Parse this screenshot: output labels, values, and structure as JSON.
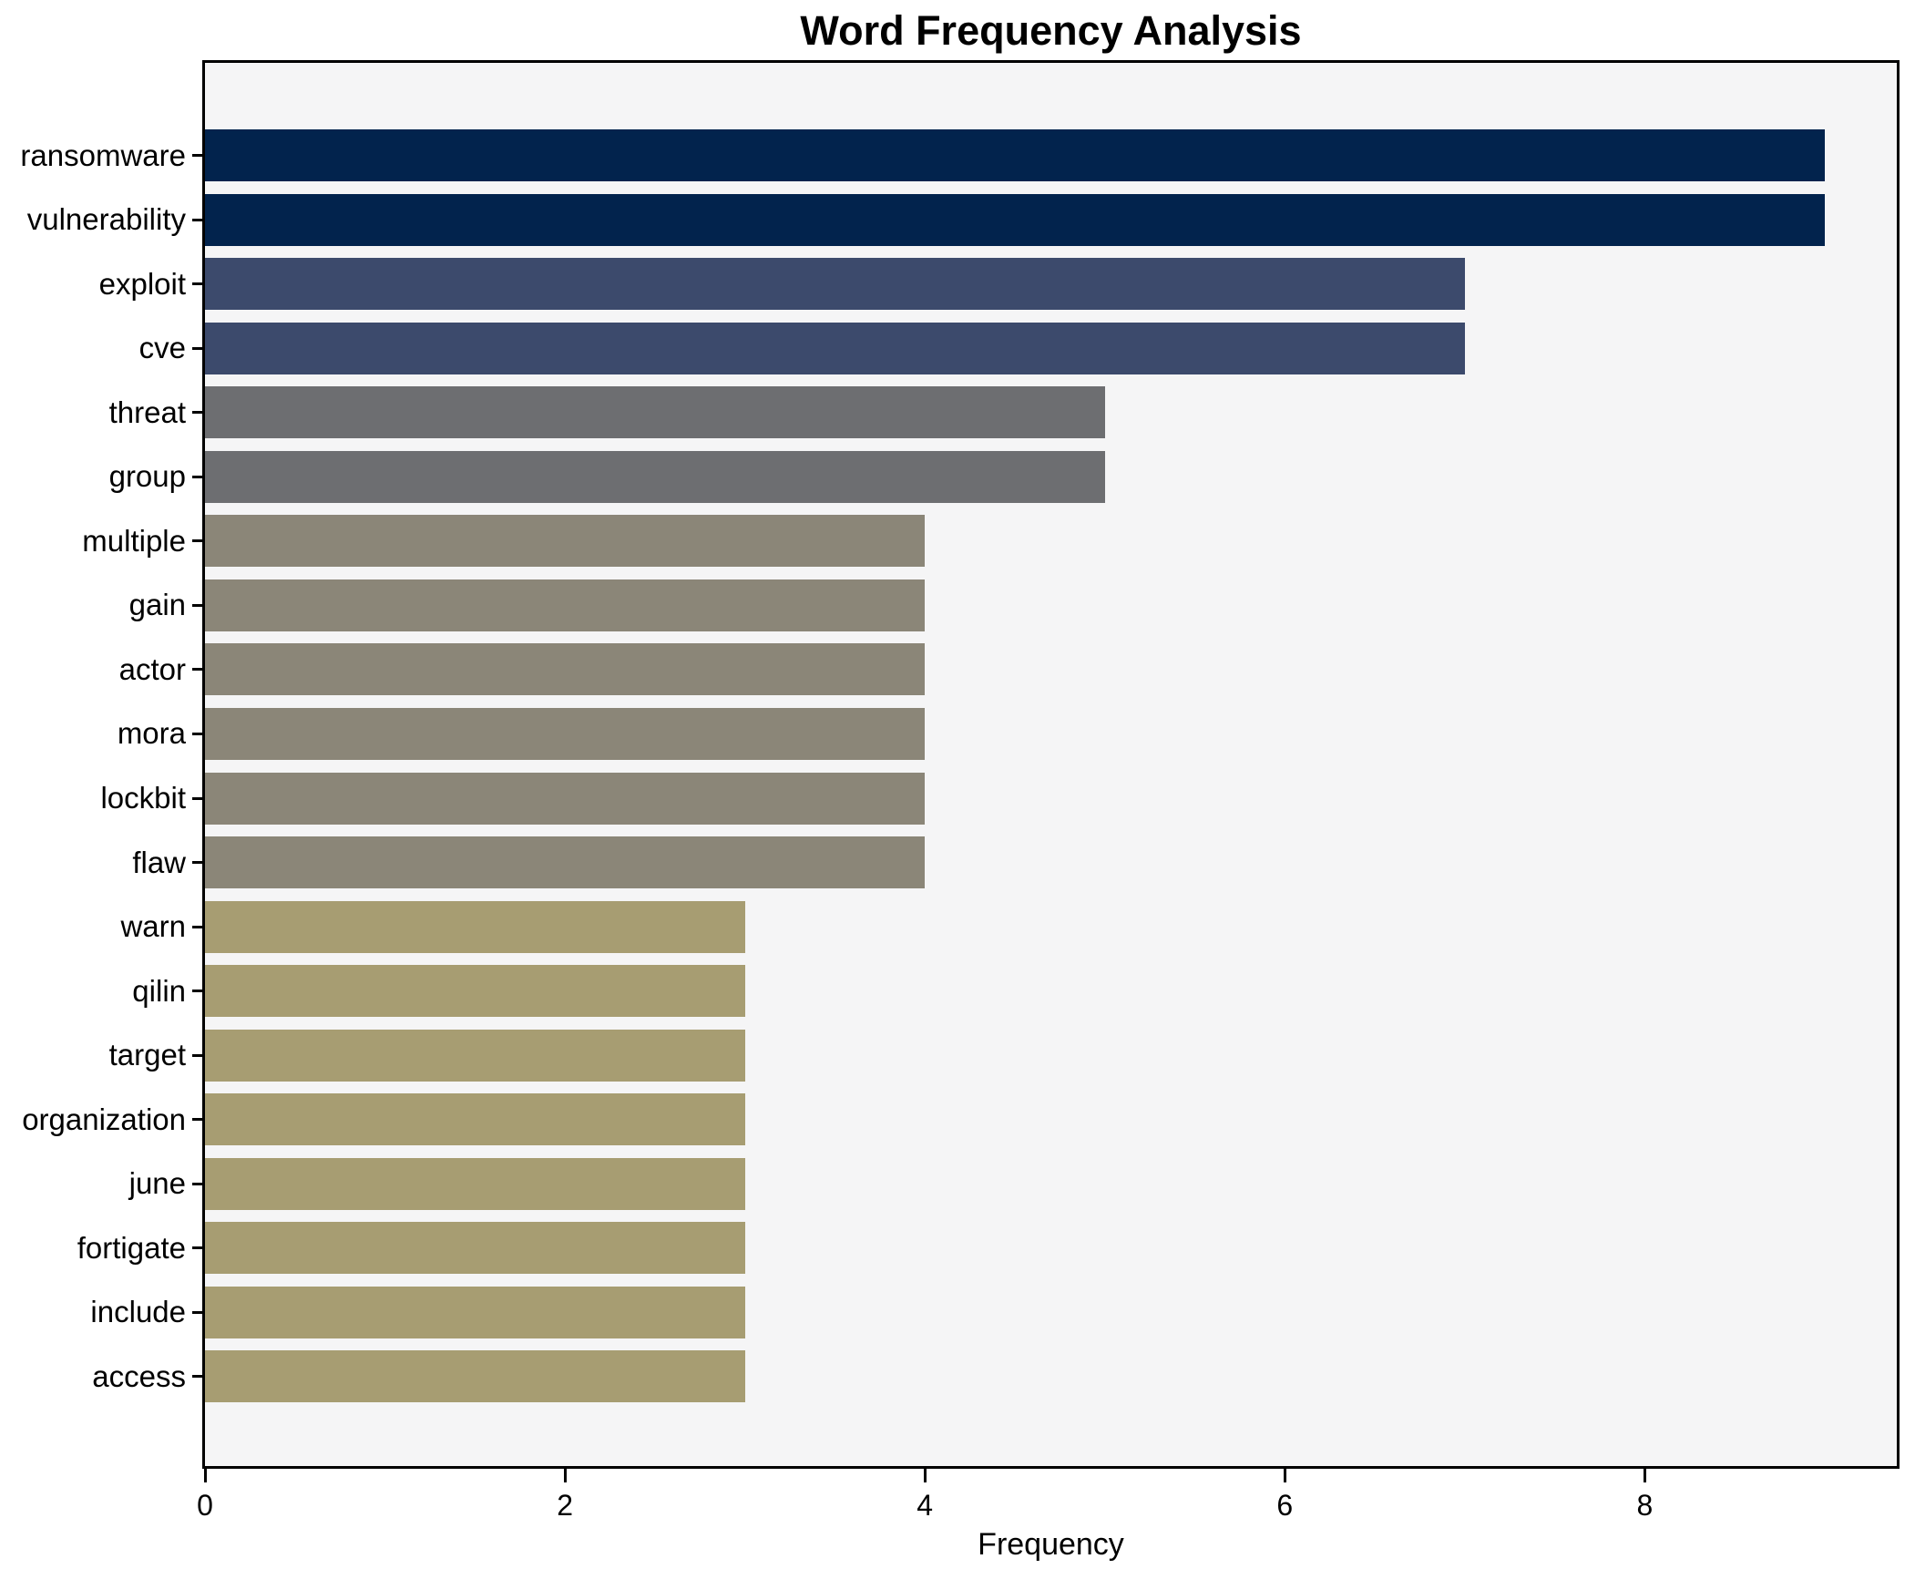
{
  "chart_data": {
    "type": "bar",
    "orientation": "horizontal",
    "title": "Word Frequency Analysis",
    "xlabel": "Frequency",
    "ylabel": "",
    "categories": [
      "ransomware",
      "vulnerability",
      "exploit",
      "cve",
      "threat",
      "group",
      "multiple",
      "gain",
      "actor",
      "mora",
      "lockbit",
      "flaw",
      "warn",
      "qilin",
      "target",
      "organization",
      "june",
      "fortigate",
      "include",
      "access"
    ],
    "values": [
      9,
      9,
      7,
      7,
      5,
      5,
      4,
      4,
      4,
      4,
      4,
      4,
      3,
      3,
      3,
      3,
      3,
      3,
      3,
      3
    ],
    "bar_colors": [
      "#02234d",
      "#02234d",
      "#3c4a6c",
      "#3c4a6c",
      "#6d6e71",
      "#6d6e71",
      "#8b8678",
      "#8b8678",
      "#8b8678",
      "#8b8678",
      "#8b8678",
      "#8b8678",
      "#a79d72",
      "#a79d72",
      "#a79d72",
      "#a79d72",
      "#a79d72",
      "#a79d72",
      "#a79d72",
      "#a79d72"
    ],
    "x_ticks": [
      0,
      2,
      4,
      6,
      8
    ],
    "xlim": [
      0,
      9.4
    ],
    "grid": false,
    "legend": false,
    "plot_bg": "#f5f5f6",
    "figure_bg": "#ffffff",
    "spine_color": "#000000",
    "text_color": "#000000"
  }
}
